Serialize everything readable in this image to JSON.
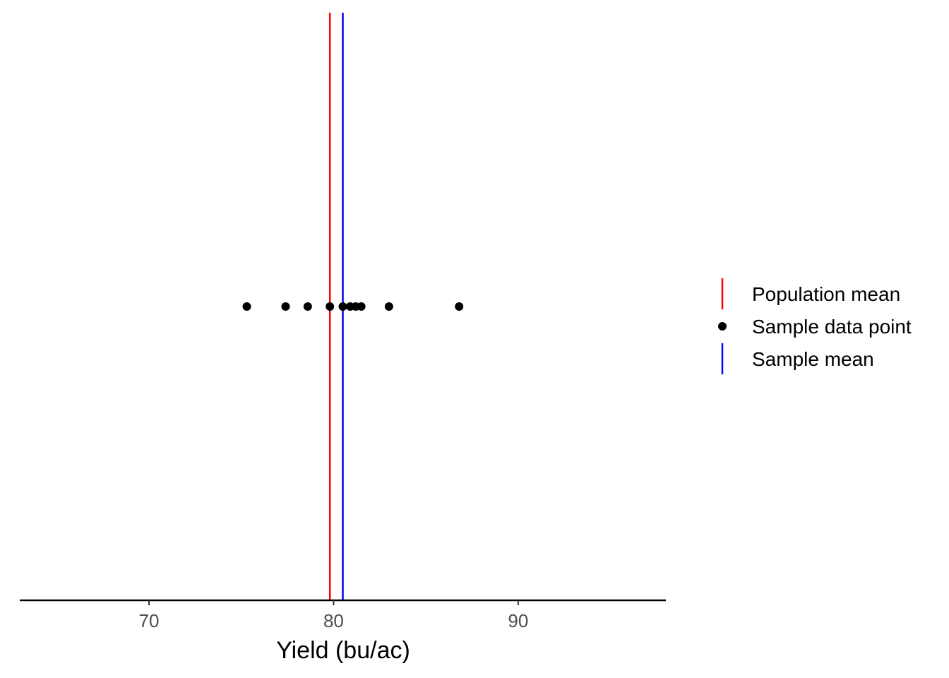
{
  "chart_data": {
    "type": "scatter",
    "title": "",
    "xlabel": "Yield (bu/ac)",
    "ylabel": "",
    "xlim": [
      63,
      98
    ],
    "x_ticks": [
      70,
      80,
      90
    ],
    "x_tick_labels": [
      "70",
      "80",
      "90"
    ],
    "grid": false,
    "legend_position": "right",
    "series": [
      {
        "name": "Sample data point",
        "kind": "points",
        "color": "#000000",
        "x": [
          75.3,
          77.4,
          78.6,
          79.8,
          80.5,
          80.9,
          81.2,
          81.5,
          83.0,
          86.8
        ]
      },
      {
        "name": "Population mean",
        "kind": "vline",
        "color": "#ff0000",
        "x": 79.8
      },
      {
        "name": "Sample mean",
        "kind": "vline",
        "color": "#0000ff",
        "x": 80.5
      }
    ],
    "legend": [
      {
        "label": "Population mean",
        "key": "vline",
        "color": "#ff0000"
      },
      {
        "label": "Sample data point",
        "key": "point",
        "color": "#000000"
      },
      {
        "label": "Sample mean",
        "key": "vline",
        "color": "#0000ff"
      }
    ]
  }
}
